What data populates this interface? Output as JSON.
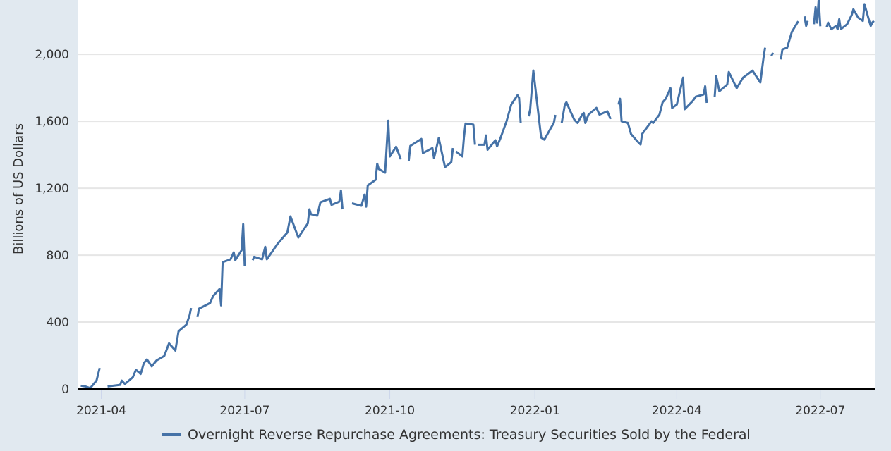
{
  "chart_data": {
    "type": "line",
    "title": "",
    "xlabel": "",
    "ylabel": "Billions of US Dollars",
    "xlim": [
      "2021-03-17",
      "2022-08-05"
    ],
    "ylim": [
      0,
      2325
    ],
    "grid": true,
    "legend_placement": "bottom",
    "line_color": "#4572a7",
    "y_ticks": [
      0,
      400,
      800,
      1200,
      1600,
      2000
    ],
    "y_tick_labels": [
      "0",
      "400",
      "800",
      "1,200",
      "1,600",
      "2,000"
    ],
    "x_ticks": [
      "2021-04-01",
      "2021-07-01",
      "2021-10-01",
      "2022-01-01",
      "2022-04-01",
      "2022-07-01"
    ],
    "x_tick_labels": [
      "2021-04",
      "2021-07",
      "2021-10",
      "2022-01",
      "2022-04",
      "2022-07"
    ],
    "series": [
      {
        "name": "Overnight Reverse Repurchase Agreements: Treasury Securities Sold by the Federal",
        "points": [
          [
            "2021-03-19",
            20
          ],
          [
            "2021-03-22",
            15
          ],
          [
            "2021-03-25",
            5
          ],
          [
            "2021-03-29",
            50
          ],
          [
            "2021-03-31",
            126
          ],
          [
            "2021-04-02",
            null
          ],
          [
            "2021-04-05",
            15
          ],
          [
            "2021-04-13",
            25
          ],
          [
            "2021-04-14",
            50
          ],
          [
            "2021-04-16",
            30
          ],
          [
            "2021-04-21",
            70
          ],
          [
            "2021-04-23",
            115
          ],
          [
            "2021-04-26",
            90
          ],
          [
            "2021-04-28",
            155
          ],
          [
            "2021-04-30",
            177
          ],
          [
            "2021-05-03",
            135
          ],
          [
            "2021-05-06",
            170
          ],
          [
            "2021-05-11",
            198
          ],
          [
            "2021-05-14",
            273
          ],
          [
            "2021-05-18",
            230
          ],
          [
            "2021-05-20",
            345
          ],
          [
            "2021-05-25",
            385
          ],
          [
            "2021-05-27",
            440
          ],
          [
            "2021-05-28",
            484
          ],
          [
            "2021-05-31",
            null
          ],
          [
            "2021-06-01",
            430
          ],
          [
            "2021-06-02",
            480
          ],
          [
            "2021-06-09",
            514
          ],
          [
            "2021-06-11",
            556
          ],
          [
            "2021-06-15",
            598
          ],
          [
            "2021-06-16",
            500
          ],
          [
            "2021-06-17",
            758
          ],
          [
            "2021-06-22",
            775
          ],
          [
            "2021-06-24",
            817
          ],
          [
            "2021-06-25",
            770
          ],
          [
            "2021-06-29",
            830
          ],
          [
            "2021-06-30",
            985
          ],
          [
            "2021-07-01",
            733
          ],
          [
            "2021-07-02",
            null
          ],
          [
            "2021-07-06",
            770
          ],
          [
            "2021-07-07",
            790
          ],
          [
            "2021-07-12",
            775
          ],
          [
            "2021-07-14",
            850
          ],
          [
            "2021-07-15",
            775
          ],
          [
            "2021-07-22",
            870
          ],
          [
            "2021-07-28",
            935
          ],
          [
            "2021-07-30",
            1032
          ],
          [
            "2021-08-04",
            905
          ],
          [
            "2021-08-10",
            990
          ],
          [
            "2021-08-11",
            1074
          ],
          [
            "2021-08-12",
            1045
          ],
          [
            "2021-08-16",
            1036
          ],
          [
            "2021-08-18",
            1116
          ],
          [
            "2021-08-24",
            1137
          ],
          [
            "2021-08-25",
            1100
          ],
          [
            "2021-08-30",
            1120
          ],
          [
            "2021-08-31",
            1187
          ],
          [
            "2021-09-01",
            1074
          ],
          [
            "2021-09-03",
            null
          ],
          [
            "2021-09-07",
            1110
          ],
          [
            "2021-09-13",
            1095
          ],
          [
            "2021-09-15",
            1162
          ],
          [
            "2021-09-16",
            1090
          ],
          [
            "2021-09-17",
            1217
          ],
          [
            "2021-09-22",
            1250
          ],
          [
            "2021-09-23",
            1347
          ],
          [
            "2021-09-24",
            1315
          ],
          [
            "2021-09-28",
            1293
          ],
          [
            "2021-09-30",
            1604
          ],
          [
            "2021-10-01",
            1390
          ],
          [
            "2021-10-05",
            1448
          ],
          [
            "2021-10-08",
            1373
          ],
          [
            "2021-10-11",
            null
          ],
          [
            "2021-10-13",
            1364
          ],
          [
            "2021-10-14",
            1453
          ],
          [
            "2021-10-21",
            1495
          ],
          [
            "2021-10-22",
            1410
          ],
          [
            "2021-10-28",
            1440
          ],
          [
            "2021-10-29",
            1380
          ],
          [
            "2021-11-01",
            1500
          ],
          [
            "2021-11-05",
            1326
          ],
          [
            "2021-11-09",
            1356
          ],
          [
            "2021-11-10",
            1440
          ],
          [
            "2021-11-11",
            null
          ],
          [
            "2021-11-12",
            1420
          ],
          [
            "2021-11-16",
            1390
          ],
          [
            "2021-11-17",
            1503
          ],
          [
            "2021-11-18",
            1587
          ],
          [
            "2021-11-23",
            1580
          ],
          [
            "2021-11-24",
            1460
          ],
          [
            "2021-11-25",
            null
          ],
          [
            "2021-11-26",
            1460
          ],
          [
            "2021-11-30",
            1460
          ],
          [
            "2021-12-01",
            1516
          ],
          [
            "2021-12-02",
            1430
          ],
          [
            "2021-12-07",
            1487
          ],
          [
            "2021-12-08",
            1450
          ],
          [
            "2021-12-10",
            1495
          ],
          [
            "2021-12-14",
            1600
          ],
          [
            "2021-12-17",
            1700
          ],
          [
            "2021-12-21",
            1756
          ],
          [
            "2021-12-22",
            1740
          ],
          [
            "2021-12-23",
            1590
          ],
          [
            "2021-12-24",
            null
          ],
          [
            "2021-12-28",
            1630
          ],
          [
            "2021-12-29",
            1670
          ],
          [
            "2021-12-31",
            1904
          ],
          [
            "2022-01-05",
            1503
          ],
          [
            "2022-01-07",
            1490
          ],
          [
            "2022-01-11",
            1558
          ],
          [
            "2022-01-13",
            1590
          ],
          [
            "2022-01-14",
            1638
          ],
          [
            "2022-01-17",
            null
          ],
          [
            "2022-01-18",
            1590
          ],
          [
            "2022-01-20",
            1700
          ],
          [
            "2022-01-21",
            1714
          ],
          [
            "2022-01-24",
            1650
          ],
          [
            "2022-01-26",
            1610
          ],
          [
            "2022-01-28",
            1590
          ],
          [
            "2022-01-31",
            1640
          ],
          [
            "2022-02-01",
            1650
          ],
          [
            "2022-02-02",
            1590
          ],
          [
            "2022-02-04",
            1640
          ],
          [
            "2022-02-09",
            1680
          ],
          [
            "2022-02-11",
            1640
          ],
          [
            "2022-02-16",
            1660
          ],
          [
            "2022-02-18",
            1613
          ],
          [
            "2022-02-21",
            null
          ],
          [
            "2022-02-23",
            1700
          ],
          [
            "2022-02-24",
            1735
          ],
          [
            "2022-02-25",
            1600
          ],
          [
            "2022-03-01",
            1590
          ],
          [
            "2022-03-03",
            1524
          ],
          [
            "2022-03-07",
            1480
          ],
          [
            "2022-03-09",
            1461
          ],
          [
            "2022-03-10",
            1524
          ],
          [
            "2022-03-14",
            1575
          ],
          [
            "2022-03-16",
            1600
          ],
          [
            "2022-03-17",
            1590
          ],
          [
            "2022-03-21",
            1640
          ],
          [
            "2022-03-23",
            1714
          ],
          [
            "2022-03-25",
            1735
          ],
          [
            "2022-03-28",
            1798
          ],
          [
            "2022-03-29",
            1680
          ],
          [
            "2022-04-01",
            1700
          ],
          [
            "2022-04-05",
            1861
          ],
          [
            "2022-04-06",
            1672
          ],
          [
            "2022-04-11",
            1720
          ],
          [
            "2022-04-13",
            1747
          ],
          [
            "2022-04-18",
            1760
          ],
          [
            "2022-04-19",
            1810
          ],
          [
            "2022-04-20",
            1710
          ],
          [
            "2022-04-22",
            null
          ],
          [
            "2022-04-25",
            1745
          ],
          [
            "2022-04-26",
            1870
          ],
          [
            "2022-04-28",
            1780
          ],
          [
            "2022-05-03",
            1820
          ],
          [
            "2022-05-04",
            1895
          ],
          [
            "2022-05-09",
            1798
          ],
          [
            "2022-05-13",
            1861
          ],
          [
            "2022-05-19",
            1903
          ],
          [
            "2022-05-24",
            1832
          ],
          [
            "2022-05-26",
            1979
          ],
          [
            "2022-05-27",
            2040
          ],
          [
            "2022-05-30",
            null
          ],
          [
            "2022-05-31",
            1990
          ],
          [
            "2022-06-01",
            2010
          ],
          [
            "2022-06-03",
            null
          ],
          [
            "2022-06-06",
            1970
          ],
          [
            "2022-06-07",
            2030
          ],
          [
            "2022-06-10",
            2040
          ],
          [
            "2022-06-13",
            2135
          ],
          [
            "2022-06-17",
            2198
          ],
          [
            "2022-06-20",
            null
          ],
          [
            "2022-06-21",
            2227
          ],
          [
            "2022-06-22",
            2170
          ],
          [
            "2022-06-23",
            2200
          ],
          [
            "2022-06-24",
            null
          ],
          [
            "2022-06-27",
            2180
          ],
          [
            "2022-06-28",
            2282
          ],
          [
            "2022-06-29",
            2190
          ],
          [
            "2022-06-30",
            2329
          ],
          [
            "2022-07-01",
            2168
          ],
          [
            "2022-07-04",
            null
          ],
          [
            "2022-07-05",
            2162
          ],
          [
            "2022-07-06",
            2190
          ],
          [
            "2022-07-08",
            2150
          ],
          [
            "2022-07-11",
            2170
          ],
          [
            "2022-07-12",
            2150
          ],
          [
            "2022-07-13",
            2210
          ],
          [
            "2022-07-14",
            2150
          ],
          [
            "2022-07-18",
            2180
          ],
          [
            "2022-07-21",
            2237
          ],
          [
            "2022-07-22",
            2270
          ],
          [
            "2022-07-25",
            2220
          ],
          [
            "2022-07-28",
            2200
          ],
          [
            "2022-07-29",
            2300
          ],
          [
            "2022-08-01",
            2200
          ],
          [
            "2022-08-02",
            2170
          ],
          [
            "2022-08-03",
            2190
          ],
          [
            "2022-08-04",
            2200
          ]
        ]
      }
    ]
  }
}
